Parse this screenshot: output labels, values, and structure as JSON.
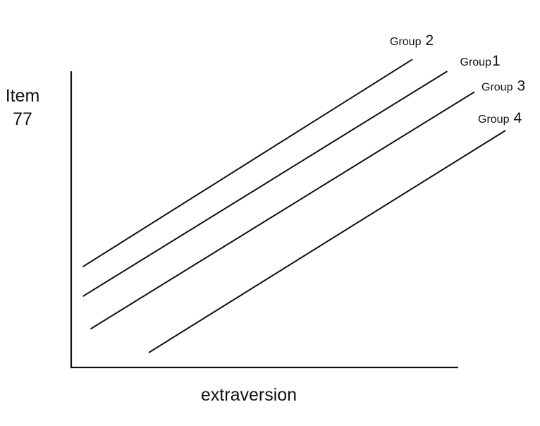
{
  "chart_data": {
    "type": "line",
    "title": "",
    "xlabel": "extraversion",
    "ylabel_line1": "Item",
    "ylabel_line2": "77",
    "xlim": [
      0,
      100
    ],
    "ylim": [
      0,
      100
    ],
    "grid": false,
    "series": [
      {
        "name": "Group 2",
        "label_word": "Group",
        "label_num": "2",
        "x": [
          3,
          88
        ],
        "y": [
          34,
          104
        ]
      },
      {
        "name": "Group1",
        "label_word": "Group",
        "label_num": "1",
        "x": [
          3,
          97
        ],
        "y": [
          24,
          100
        ]
      },
      {
        "name": "Group 3",
        "label_word": "Group",
        "label_num": "3",
        "x": [
          5,
          104
        ],
        "y": [
          13,
          93
        ]
      },
      {
        "name": "Group 4",
        "label_word": "Group",
        "label_num": "4",
        "x": [
          20,
          112
        ],
        "y": [
          5,
          80
        ]
      }
    ]
  }
}
